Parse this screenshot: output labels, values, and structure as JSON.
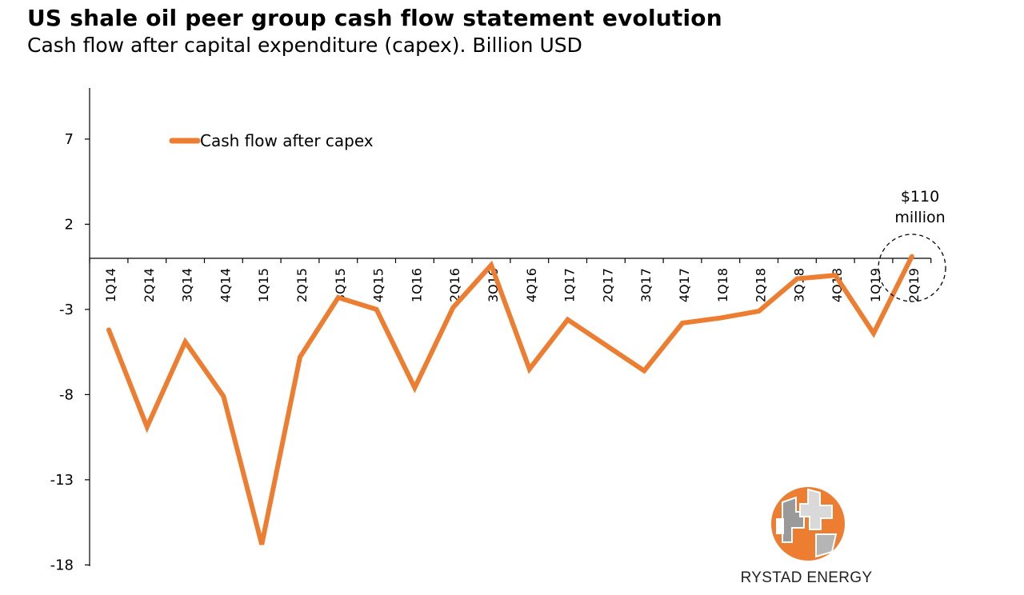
{
  "title": "US shale oil peer group cash flow statement evolution",
  "subtitle": "Cash flow after capital expenditure (capex). Billion USD",
  "chart_data": {
    "type": "line",
    "categories": [
      "1Q14",
      "2Q14",
      "3Q14",
      "4Q14",
      "1Q15",
      "2Q15",
      "3Q15",
      "4Q15",
      "1Q16",
      "2Q16",
      "3Q16",
      "4Q16",
      "1Q17",
      "2Q17",
      "3Q17",
      "4Q17",
      "1Q18",
      "2Q18",
      "3Q18",
      "4Q18",
      "1Q19",
      "2Q19"
    ],
    "series": [
      {
        "name": "Cash flow after capex",
        "values": [
          -4.2,
          -9.9,
          -4.9,
          -8.1,
          -16.8,
          -5.8,
          -2.3,
          -3.0,
          -7.6,
          -2.9,
          -0.4,
          -6.5,
          -3.6,
          -5.1,
          -6.6,
          -3.8,
          -3.5,
          -3.1,
          -1.2,
          -1.0,
          -4.4,
          0.11
        ]
      }
    ],
    "yticks": [
      7,
      2,
      -3,
      -8,
      -13,
      -18
    ],
    "ylim": [
      -18,
      10
    ],
    "legend": "top-left",
    "annotation": {
      "line1": "$110",
      "line2": "million",
      "category": "2Q19"
    },
    "grid": false
  },
  "colors": {
    "line": "#ED7D31",
    "axis": "#000000"
  },
  "branding": {
    "logo_text": "RYSTAD ENERGY",
    "logo_icon": "globe-logo-icon"
  }
}
